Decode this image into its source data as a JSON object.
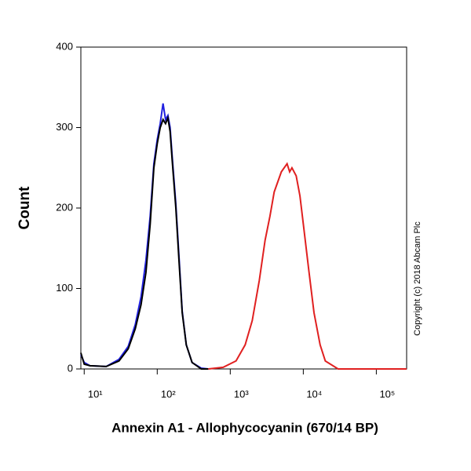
{
  "chart_data": {
    "type": "line",
    "x_label": "Annexin A1 - Allophycocyanin (670/14 BP)",
    "y_label": "Count",
    "copyright": "Copyright (c) 2018 Abcam Plc",
    "xscale": "log",
    "xlim": [
      9,
      260000
    ],
    "ylim": [
      0,
      400
    ],
    "xticks": [
      {
        "value": 10,
        "label": "10¹"
      },
      {
        "value": 100,
        "label": "10²"
      },
      {
        "value": 1000,
        "label": "10³"
      },
      {
        "value": 10000,
        "label": "10⁴"
      },
      {
        "value": 100000,
        "label": "10⁵"
      }
    ],
    "yticks": [
      0,
      100,
      200,
      300,
      400
    ],
    "series": [
      {
        "color": "#2020e0",
        "x": [
          9,
          10,
          12,
          20,
          30,
          40,
          50,
          60,
          70,
          80,
          90,
          100,
          110,
          120,
          130,
          140,
          150,
          160,
          180,
          200,
          220,
          250,
          300,
          400,
          500
        ],
        "values": [
          18,
          8,
          4,
          3,
          12,
          28,
          55,
          90,
          135,
          190,
          255,
          285,
          305,
          330,
          310,
          315,
          300,
          265,
          205,
          135,
          72,
          30,
          8,
          1,
          0
        ]
      },
      {
        "color": "#000000",
        "x": [
          9,
          10,
          12,
          20,
          30,
          40,
          50,
          60,
          70,
          80,
          90,
          100,
          110,
          120,
          130,
          140,
          150,
          160,
          180,
          200,
          220,
          250,
          300,
          400,
          500
        ],
        "values": [
          20,
          6,
          4,
          3,
          10,
          25,
          50,
          80,
          120,
          180,
          250,
          280,
          300,
          310,
          305,
          312,
          295,
          260,
          200,
          130,
          70,
          30,
          8,
          0,
          0
        ]
      },
      {
        "color": "#e02020",
        "x": [
          500,
          800,
          1200,
          1600,
          2000,
          2500,
          3000,
          3500,
          4000,
          5000,
          6000,
          6500,
          7000,
          8000,
          9000,
          10000,
          12000,
          14000,
          17000,
          20000,
          30000,
          100000,
          260000
        ],
        "values": [
          0,
          2,
          10,
          30,
          60,
          110,
          160,
          190,
          220,
          245,
          255,
          245,
          250,
          240,
          215,
          180,
          120,
          70,
          30,
          10,
          0,
          0,
          0
        ]
      }
    ]
  }
}
